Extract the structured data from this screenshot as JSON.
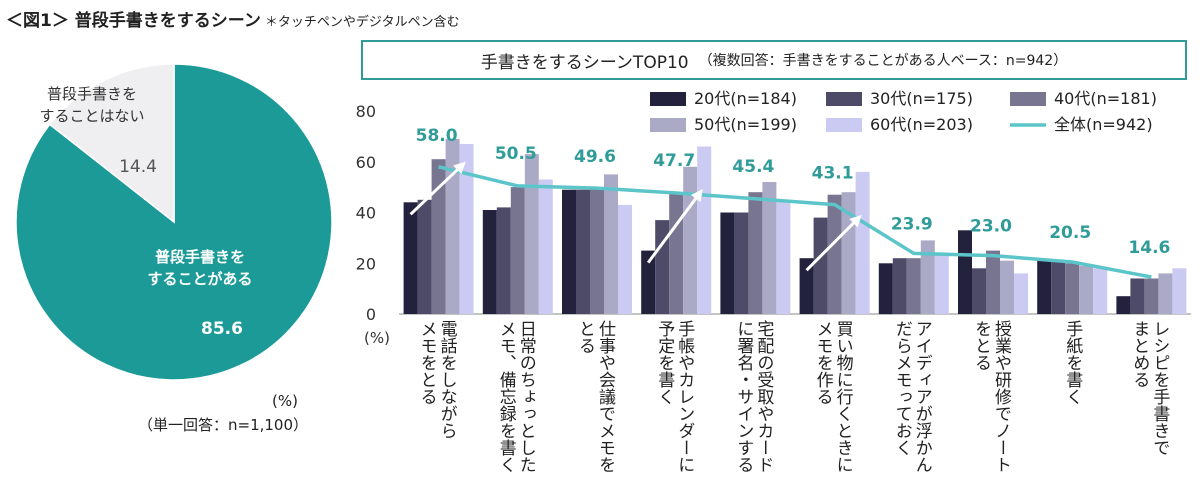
{
  "figure": {
    "title": "＜図1＞ 普段手書きをするシーン",
    "note": "＊タッチペンやデジタルペン含む"
  },
  "pie": {
    "unit": "(%)",
    "base": "（単一回答：n=1,100）",
    "colors": {
      "yes": "#1b9a98",
      "no": "#efeff1"
    }
  },
  "chart_box": {
    "title": "手書きをするシーンTOP10",
    "subtitle": "（複数回答：手書きをすることがある人ベース：n=942）"
  },
  "chart_data": [
    {
      "type": "pie",
      "categories": [
        "普段手書きをすることがある",
        "普段手書きをすることはない"
      ],
      "values": [
        85.6,
        14.4
      ],
      "labels": [
        {
          "lines": [
            "普段手書きを",
            "することがある"
          ],
          "value": "85.6"
        },
        {
          "lines": [
            "普段手書きを",
            "することはない"
          ],
          "value": "14.4"
        }
      ]
    },
    {
      "type": "bar",
      "ylim": [
        0,
        80
      ],
      "yticks": [
        "0",
        "20",
        "40",
        "60",
        "80"
      ],
      "yunit": "(%)",
      "categories": [
        [
          "電話をしながら",
          "メモをとる"
        ],
        [
          "日常のちょっとした",
          "メモ、備忘録を書く"
        ],
        [
          "仕事や会議でメモを",
          "とる"
        ],
        [
          "手帳やカレンダーに",
          "予定を書く"
        ],
        [
          "宅配の受取やカード",
          "に署名・サインする"
        ],
        [
          "買い物に行くときに",
          "メモを作る"
        ],
        [
          "アイディアが浮かん",
          "だらメモっておく"
        ],
        [
          "授業や研修でノート",
          "をとる"
        ],
        [
          "手紙を書く"
        ],
        [
          "レシピを手書きで",
          "まとめる"
        ]
      ],
      "series": [
        {
          "name": "20代(n=184)",
          "color": "#23223d",
          "values": [
            44,
            41,
            49,
            25,
            40,
            22,
            20,
            33,
            21,
            7
          ]
        },
        {
          "name": "30代(n=175)",
          "color": "#4d4b68",
          "values": [
            45,
            42,
            49,
            37,
            40,
            38,
            22,
            18,
            21,
            14
          ]
        },
        {
          "name": "40代(n=181)",
          "color": "#77758f",
          "values": [
            61,
            50,
            50,
            48,
            48,
            47,
            22,
            25,
            20,
            14
          ]
        },
        {
          "name": "50代(n=199)",
          "color": "#abaac6",
          "values": [
            69,
            63,
            55,
            58,
            52,
            48,
            29,
            21,
            19,
            16
          ]
        },
        {
          "name": "60代(n=203)",
          "color": "#cacaf3",
          "values": [
            67,
            53,
            43,
            66,
            45,
            56,
            24,
            16,
            18,
            18
          ]
        },
        {
          "name": "全体(n=942)",
          "type": "line",
          "color": "#5bc5c9",
          "values": [
            58.0,
            50.5,
            49.6,
            47.7,
            45.4,
            43.1,
            23.9,
            23.0,
            20.5,
            14.6
          ]
        }
      ],
      "data_labels": [
        "58.0",
        "50.5",
        "49.6",
        "47.7",
        "45.4",
        "43.1",
        "23.9",
        "23.0",
        "20.5",
        "14.6"
      ],
      "annotations": [
        "rising arrow over groups 1, 4, 6"
      ],
      "legend": "top-right"
    }
  ]
}
